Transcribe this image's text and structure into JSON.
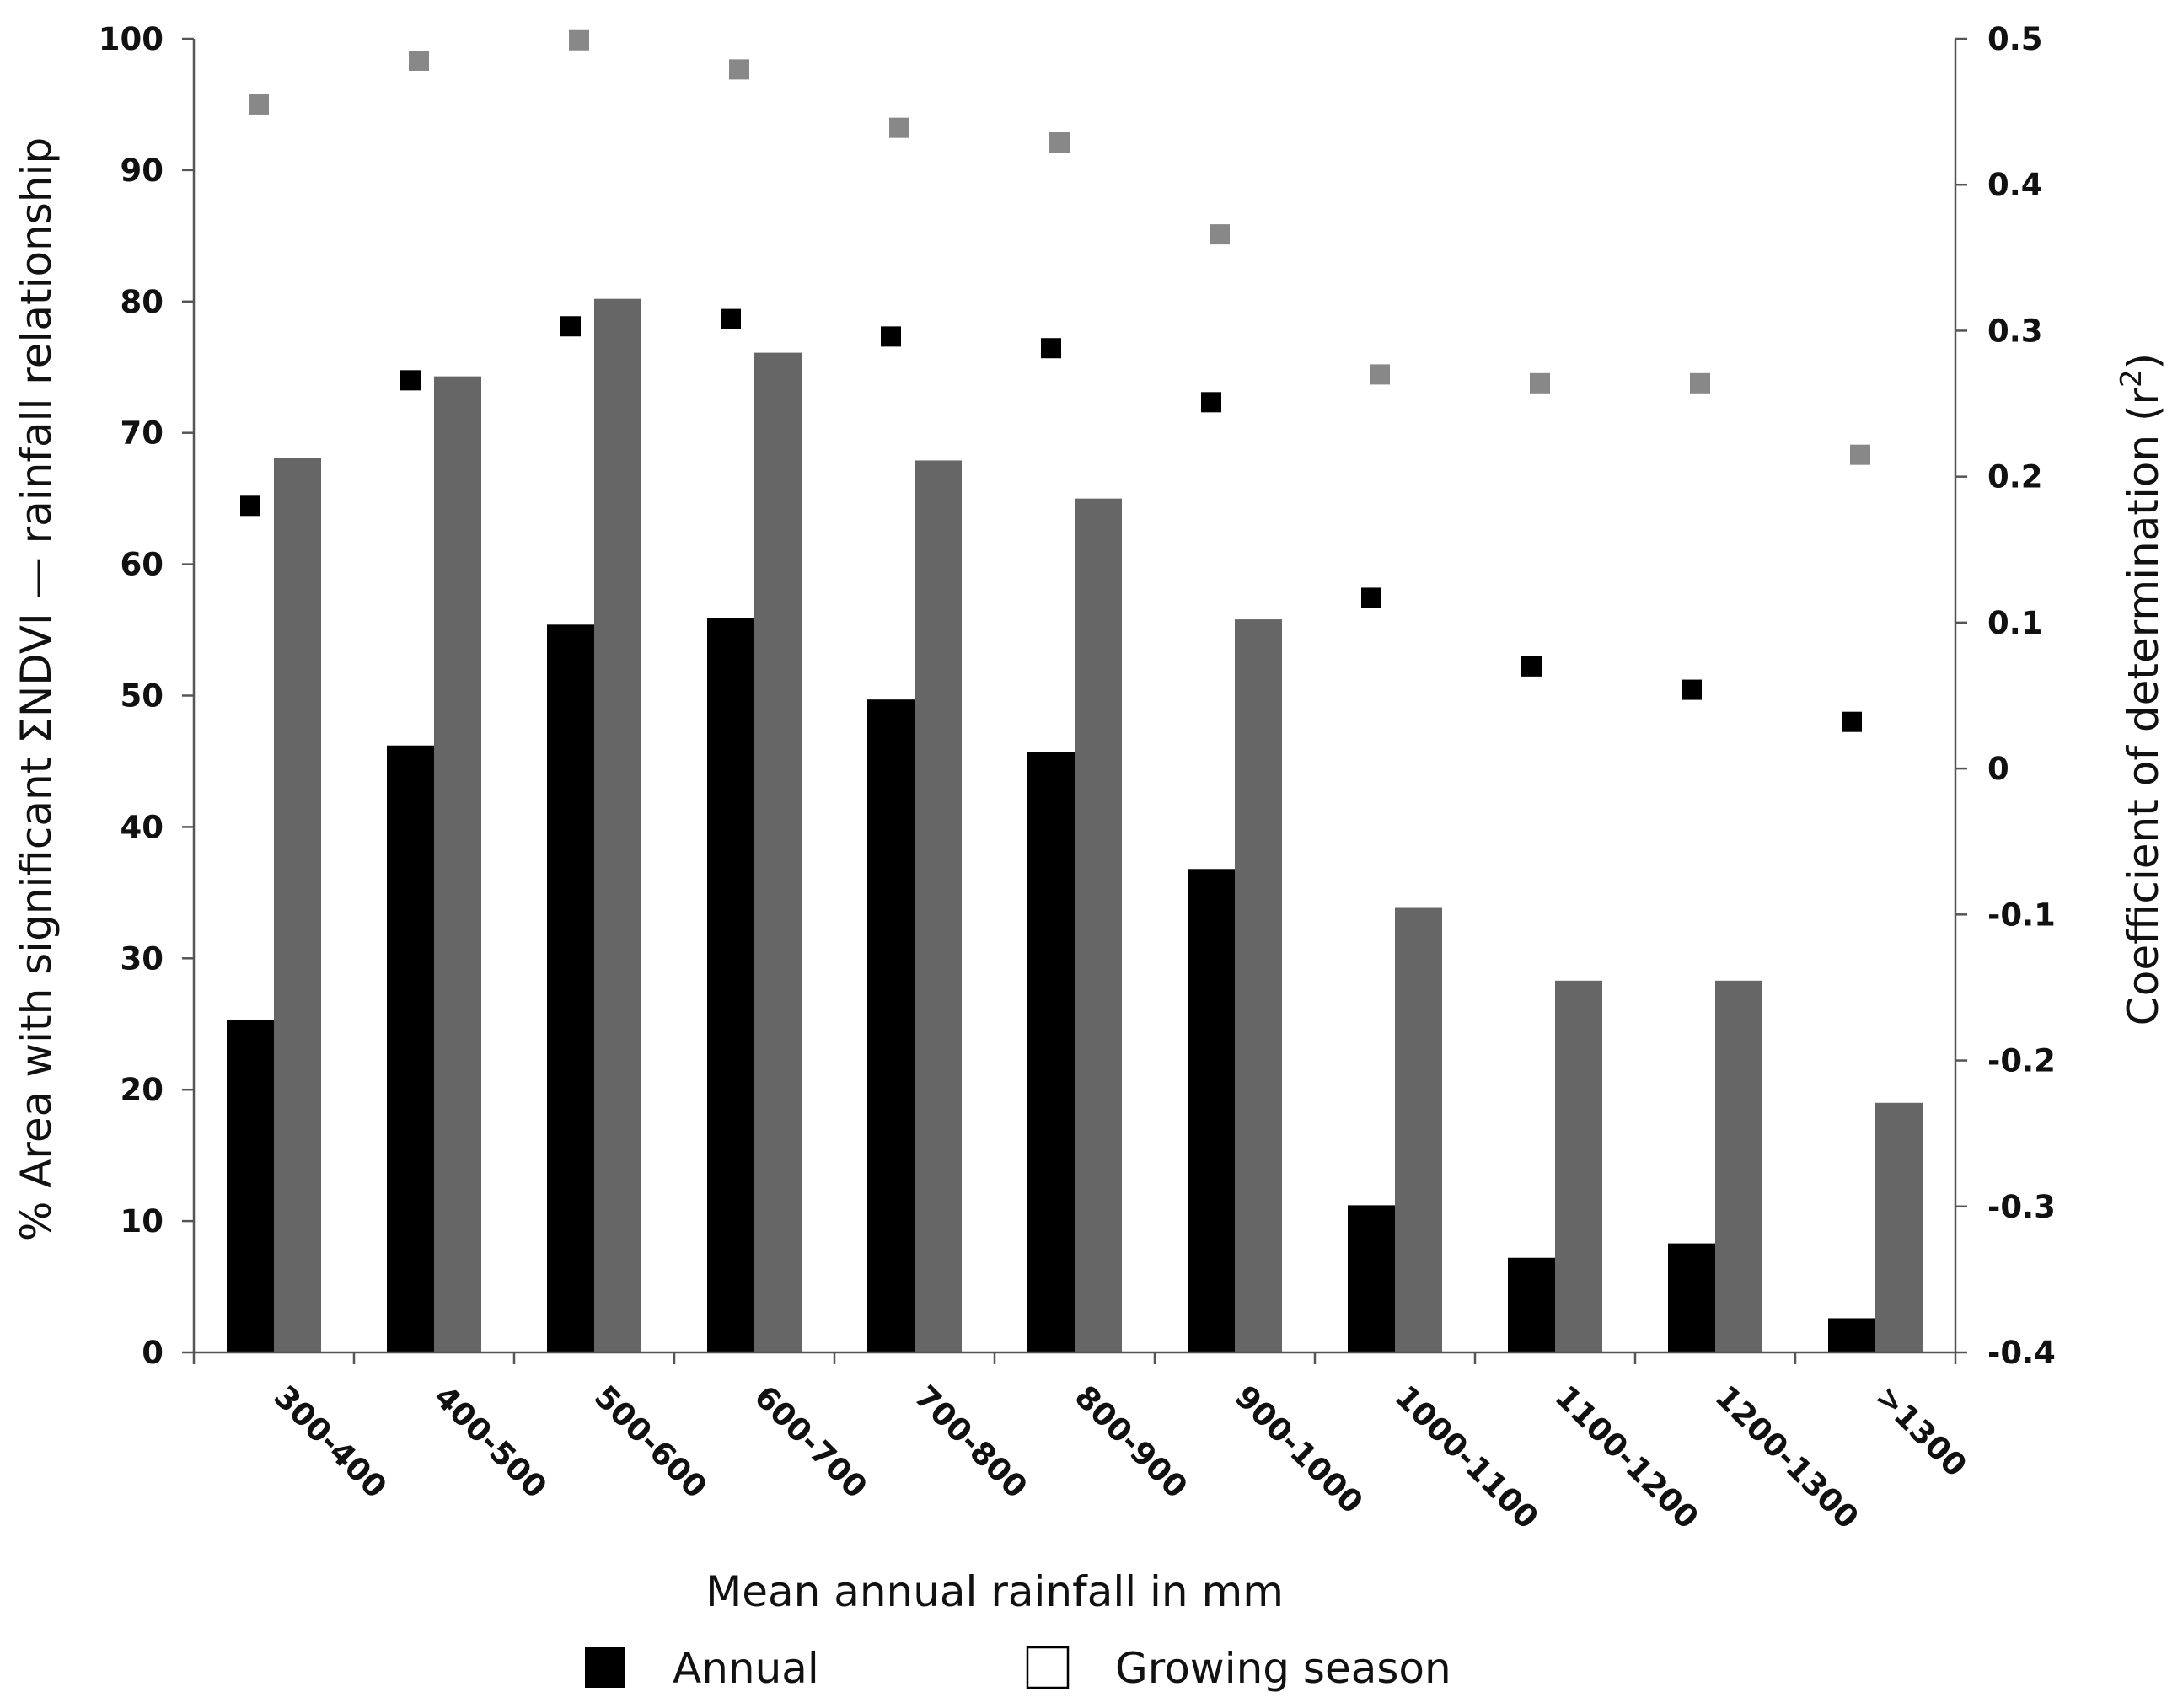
{
  "chart_data": {
    "type": "bar",
    "categories": [
      "300-400",
      "400-500",
      "500-600",
      "600-700",
      "700-800",
      "800-900",
      "900-1000",
      "1000-1100",
      "1100-1200",
      "1200-1300",
      ">1300"
    ],
    "series": [
      {
        "name": "Annual",
        "axis": "left",
        "kind": "bar",
        "color": "#000000",
        "values": [
          25.3,
          46.2,
          55.4,
          55.9,
          49.7,
          45.7,
          36.8,
          11.2,
          7.2,
          8.3,
          2.6
        ]
      },
      {
        "name": "Growing season",
        "axis": "left",
        "kind": "bar",
        "color": "#666666",
        "values": [
          68.1,
          74.3,
          80.2,
          76.1,
          67.9,
          65.0,
          55.8,
          33.9,
          28.3,
          28.3,
          19.0
        ]
      },
      {
        "name": "Annual",
        "axis": "right",
        "kind": "scatter",
        "color": "#000000",
        "values": [
          0.18,
          0.266,
          0.303,
          0.308,
          0.296,
          0.288,
          0.251,
          0.117,
          0.07,
          0.054,
          0.032
        ]
      },
      {
        "name": "Growing season",
        "axis": "right",
        "kind": "scatter",
        "color": "#888888",
        "values": [
          0.455,
          0.485,
          0.499,
          0.479,
          0.439,
          0.429,
          0.366,
          0.27,
          0.264,
          0.264,
          0.215
        ]
      }
    ],
    "ylabel": "% Area with significant ΣNDVI — rainfall relationship",
    "y2label": "Coefficient of determination (r²)",
    "xlabel": "Mean annual rainfall in mm",
    "ylim": [
      0,
      100
    ],
    "yticks": [
      0,
      10,
      20,
      30,
      40,
      50,
      60,
      70,
      80,
      90,
      100
    ],
    "y2lim": [
      -0.4,
      0.5
    ],
    "y2ticks": [
      "-0.4",
      "-0.3",
      "-0.2",
      "-0.1",
      "0",
      "0.1",
      "0.2",
      "0.3",
      "0.4",
      "0.5"
    ],
    "grid": false,
    "legend": {
      "position": "bottom",
      "entries": [
        {
          "label": "Annual",
          "marker": "filled-black-square"
        },
        {
          "label": "Growing season",
          "marker": "hollow-square"
        }
      ]
    }
  }
}
